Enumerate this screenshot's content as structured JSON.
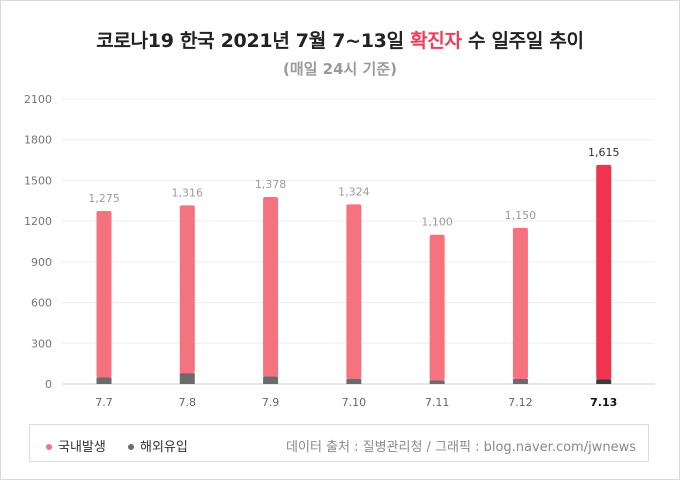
{
  "title": {
    "part1": "코로나19 한국 2021년 7월 7~13일",
    "highlight": "확진자",
    "part2": "수 일주일 추이"
  },
  "subtitle": "(매일 24시 기준)",
  "legend": {
    "domestic_label": "국내발생",
    "overseas_label": "해외유입",
    "source": "데이터 출처 : 질병관리청 / 그래픽 : blog.naver.com/jwnews"
  },
  "colors": {
    "domestic": "#f5737f",
    "domestic_highlight": "#f0334f",
    "overseas": "#6b6b6b",
    "overseas_highlight": "#3b3b3b",
    "title_highlight": "#ef3b5a"
  },
  "chart_data": {
    "type": "bar",
    "stacked": true,
    "categories": [
      "7.7",
      "7.8",
      "7.9",
      "7.10",
      "7.11",
      "7.12",
      "7.13"
    ],
    "highlight_category": "7.13",
    "series": [
      {
        "name": "국내발생",
        "values": [
          1227,
          1236,
          1323,
          1287,
          1073,
          1113,
          1582
        ]
      },
      {
        "name": "해외유입",
        "values": [
          48,
          80,
          55,
          37,
          27,
          37,
          33
        ]
      }
    ],
    "totals": [
      1275,
      1316,
      1378,
      1324,
      1100,
      1150,
      1615
    ],
    "total_labels": [
      "1,275",
      "1,316",
      "1,378",
      "1,324",
      "1,100",
      "1,150",
      "1,615"
    ],
    "y_ticks": [
      0,
      300,
      600,
      900,
      1200,
      1500,
      1800,
      2100
    ],
    "ylim": [
      0,
      2100
    ],
    "grid": true,
    "legend_position": "bottom"
  }
}
